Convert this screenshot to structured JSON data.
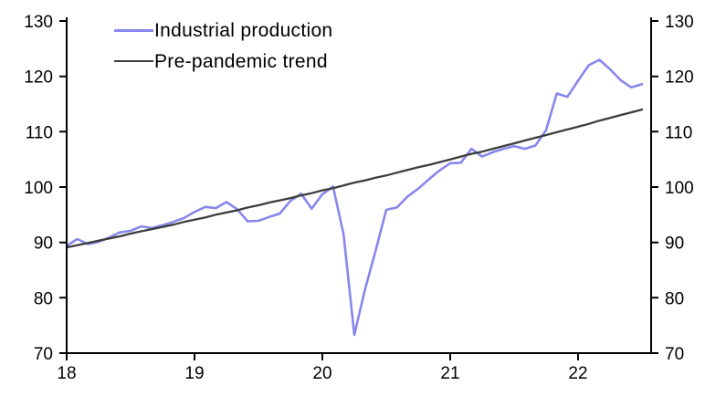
{
  "chart_data": {
    "type": "line",
    "title": "",
    "legend_position": "top-left",
    "background": "#ffffff",
    "axis_color": "#000000",
    "grid": false,
    "x_axis": {
      "tick_labels": [
        "18",
        "19",
        "20",
        "21",
        "22"
      ],
      "unit": "year",
      "frequency": "monthly",
      "start_label": "18",
      "range_years": [
        18,
        22.6
      ]
    },
    "y_axis": {
      "ticks": [
        70,
        80,
        90,
        100,
        110,
        120,
        130
      ],
      "range": [
        70,
        130
      ],
      "sides": [
        "left",
        "right"
      ]
    },
    "series": [
      {
        "name": "Industrial production",
        "color": "#8787ec",
        "values": [
          89.4,
          90.6,
          89.7,
          90.1,
          90.9,
          91.8,
          92.1,
          92.9,
          92.6,
          93.1,
          93.7,
          94.4,
          95.5,
          96.4,
          96.2,
          97.3,
          96.0,
          93.8,
          93.9,
          94.6,
          95.2,
          97.5,
          98.8,
          96.1,
          98.7,
          100.1,
          91.4,
          73.3,
          81.5,
          88.5,
          95.9,
          96.3,
          98.3,
          99.7,
          101.4,
          103.0,
          104.3,
          104.4,
          106.9,
          105.5,
          106.3,
          106.9,
          107.4,
          106.9,
          107.5,
          110.3,
          116.9,
          116.3,
          119.2,
          122.0,
          123.0,
          121.3,
          119.3,
          118.0,
          118.6
        ]
      },
      {
        "name": "Pre-pandemic trend",
        "color": "#3d3d3d",
        "values": [
          89.1,
          89.5,
          89.9,
          90.3,
          90.7,
          91.1,
          91.6,
          92.0,
          92.4,
          92.8,
          93.2,
          93.7,
          94.1,
          94.5,
          95.0,
          95.4,
          95.8,
          96.3,
          96.7,
          97.2,
          97.6,
          98.0,
          98.5,
          98.9,
          99.4,
          99.8,
          100.3,
          100.8,
          101.2,
          101.7,
          102.1,
          102.6,
          103.1,
          103.6,
          104.0,
          104.5,
          105.0,
          105.5,
          106.0,
          106.4,
          106.9,
          107.4,
          107.9,
          108.4,
          108.9,
          109.4,
          109.9,
          110.4,
          110.9,
          111.4,
          112.0,
          112.5,
          113.0,
          113.5,
          114.0
        ]
      }
    ]
  }
}
